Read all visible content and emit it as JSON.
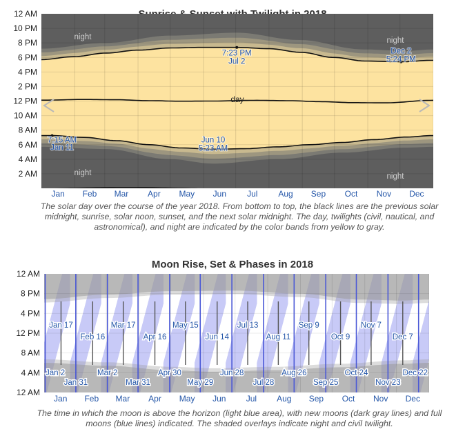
{
  "sun_chart": {
    "title": "Sunrise & Sunset with Twilight in 2018",
    "caption": "The solar day over the course of the year 2018. From bottom to top, the black lines are the previous solar midnight, sunrise, solar noon, sunset, and the next solar midnight. The day, twilights (civil, nautical, and astronomical), and night are indicated by the color bands from yellow to gray.",
    "band_labels": {
      "night": "night",
      "day": "day"
    },
    "colors": {
      "night": "#5e5e5e",
      "day": "#fde3a0",
      "twilight": [
        "#c8b98f",
        "#9d967f",
        "#7b7a73"
      ],
      "label": "#2456a8"
    }
  },
  "moon_chart": {
    "title": "Moon Rise, Set & Phases in 2018",
    "caption": "The time in which the moon is above the horizon (light blue area), with new moons (dark gray lines) and full moons (blue lines) indicated. The shaded overlays indicate night and civil twilight.",
    "colors": {
      "moon_up": "#c8caf6",
      "night_overlay": "#9a9a9a",
      "full_moon": "#4a58d6",
      "new_moon": "#555555"
    }
  },
  "chart_data": [
    {
      "type": "area",
      "title": "Sunrise & Sunset with Twilight in 2018",
      "x_tick_labels": [
        "Jan",
        "Feb",
        "Mar",
        "Apr",
        "May",
        "Jun",
        "Jul",
        "Aug",
        "Sep",
        "Oct",
        "Nov",
        "Dec"
      ],
      "y_tick_labels": [
        "12 AM",
        "10 PM",
        "8 PM",
        "6 PM",
        "4 PM",
        "2 PM",
        "12 PM",
        "10 AM",
        "8 AM",
        "6 AM",
        "4 AM",
        "2 AM"
      ],
      "ylim_hours": [
        0,
        24
      ],
      "x_month_days": [
        0,
        31,
        59,
        90,
        120,
        151,
        181,
        212,
        243,
        273,
        304,
        334,
        365
      ],
      "series": [
        {
          "name": "sunrise",
          "x_day": [
            0,
            10,
            40,
            70,
            100,
            130,
            160,
            190,
            220,
            250,
            280,
            310,
            340,
            364
          ],
          "hours": [
            7.25,
            7.25,
            7.0,
            6.55,
            6.0,
            5.55,
            5.38,
            5.45,
            5.7,
            6.0,
            6.3,
            6.7,
            7.05,
            7.25
          ]
        },
        {
          "name": "sunset",
          "x_day": [
            0,
            30,
            60,
            90,
            120,
            150,
            182,
            212,
            242,
            272,
            302,
            335,
            364
          ],
          "hours": [
            17.7,
            18.1,
            18.6,
            19.0,
            19.3,
            19.38,
            19.38,
            19.2,
            18.7,
            18.0,
            17.5,
            17.4,
            17.6
          ]
        },
        {
          "name": "solar noon",
          "x_day": [
            0,
            40,
            70,
            100,
            130,
            160,
            200,
            230,
            260,
            290,
            320,
            364
          ],
          "hours": [
            12.12,
            12.22,
            12.18,
            12.05,
            11.98,
            12.0,
            12.1,
            12.05,
            11.92,
            11.78,
            11.75,
            12.1
          ]
        },
        {
          "name": "astronomical twilight start",
          "x_day": [
            0,
            60,
            120,
            160,
            220,
            280,
            340,
            364
          ],
          "hours": [
            5.7,
            5.4,
            4.0,
            3.4,
            4.0,
            4.9,
            5.6,
            5.7
          ]
        },
        {
          "name": "astronomical twilight end",
          "x_day": [
            0,
            60,
            120,
            182,
            240,
            300,
            340,
            364
          ],
          "hours": [
            19.2,
            20.0,
            21.0,
            21.4,
            20.4,
            19.1,
            18.9,
            19.1
          ]
        }
      ],
      "annotations": [
        {
          "label": "7:15 AM",
          "sublabel": "Jan 11",
          "x_day": 10,
          "hours": 7.25
        },
        {
          "label": "Jun 10",
          "sublabel": "5:23 AM",
          "x_day": 160,
          "hours": 5.38
        },
        {
          "label": "7:23 PM",
          "sublabel": "Jul 2",
          "x_day": 182,
          "hours": 19.38
        },
        {
          "label": "Dec 2",
          "sublabel": "5:24 PM",
          "x_day": 335,
          "hours": 17.4
        }
      ]
    },
    {
      "type": "area",
      "title": "Moon Rise, Set & Phases in 2018",
      "x_tick_labels": [
        "Jan",
        "Feb",
        "Mar",
        "Apr",
        "May",
        "Jun",
        "Jul",
        "Aug",
        "Sep",
        "Oct",
        "Nov",
        "Dec"
      ],
      "y_tick_labels": [
        "12 AM",
        "8 PM",
        "4 PM",
        "12 PM",
        "8 AM",
        "4 AM",
        "12 AM"
      ],
      "ylim_hours": [
        0,
        24
      ],
      "x_month_days": [
        0,
        31,
        59,
        90,
        120,
        151,
        181,
        212,
        243,
        273,
        304,
        334,
        365
      ],
      "series": [
        {
          "name": "sunrise",
          "x_day": [
            0,
            60,
            120,
            160,
            220,
            280,
            340,
            364
          ],
          "hours": [
            7.2,
            6.6,
            5.7,
            5.4,
            5.7,
            6.3,
            7.0,
            7.2
          ]
        },
        {
          "name": "sunset",
          "x_day": [
            0,
            60,
            120,
            182,
            240,
            300,
            340,
            364
          ],
          "hours": [
            17.7,
            18.6,
            19.3,
            19.4,
            18.8,
            17.6,
            17.4,
            17.6
          ]
        }
      ],
      "full_moons": [
        "Jan 2",
        "Jan 31",
        "Mar 2",
        "Mar 31",
        "Apr 30",
        "May 29",
        "Jun 28",
        "Jul 28",
        "Aug 26",
        "Sep 25",
        "Oct 24",
        "Nov 23",
        "Dec 22"
      ],
      "full_moon_days": [
        1,
        30,
        60,
        89,
        119,
        148,
        178,
        208,
        237,
        267,
        296,
        326,
        355
      ],
      "new_moons": [
        "Jan 17",
        "Feb 16",
        "Mar 17",
        "Apr 16",
        "May 15",
        "Jun 14",
        "Jul 13",
        "Aug 11",
        "Sep 9",
        "Oct 9",
        "Nov 7",
        "Dec 7"
      ],
      "new_moon_days": [
        16,
        46,
        75,
        105,
        134,
        164,
        193,
        222,
        251,
        281,
        310,
        340
      ]
    }
  ]
}
